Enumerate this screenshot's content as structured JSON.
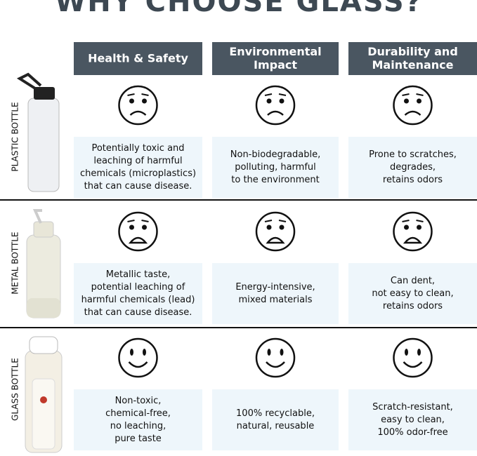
{
  "title": "WHY CHOOSE GLASS?",
  "columns": [
    [
      "Health & Safety"
    ],
    [
      "Environmental",
      "Impact"
    ],
    [
      "Durability and",
      "Maintenance"
    ]
  ],
  "rows": [
    {
      "label": "PLASTIC BOTTLE",
      "cells": [
        [
          "Potentially toxic and",
          "leaching of harmful",
          "chemicals (microplastics)",
          "that can cause disease."
        ],
        [
          "Non-biodegradable,",
          "polluting, harmful",
          "to the environment"
        ],
        [
          "Prone to scratches,",
          "degrades,",
          "retains odors"
        ]
      ]
    },
    {
      "label": "METAL BOTTLE",
      "cells": [
        [
          "Metallic taste,",
          "potential leaching of",
          "harmful chemicals (lead)",
          "that can cause disease."
        ],
        [
          "Energy-intensive,",
          "mixed materials"
        ],
        [
          "Can dent,",
          "not easy to clean,",
          "retains odors"
        ]
      ]
    },
    {
      "label": "GLASS BOTTLE",
      "cells": [
        [
          "Non-toxic,",
          "chemical-free,",
          "no leaching,",
          "pure taste"
        ],
        [
          "100% recyclable,",
          "natural, reusable"
        ],
        [
          "Scratch-resistant,",
          "easy to clean,",
          "100% odor-free"
        ]
      ]
    }
  ]
}
